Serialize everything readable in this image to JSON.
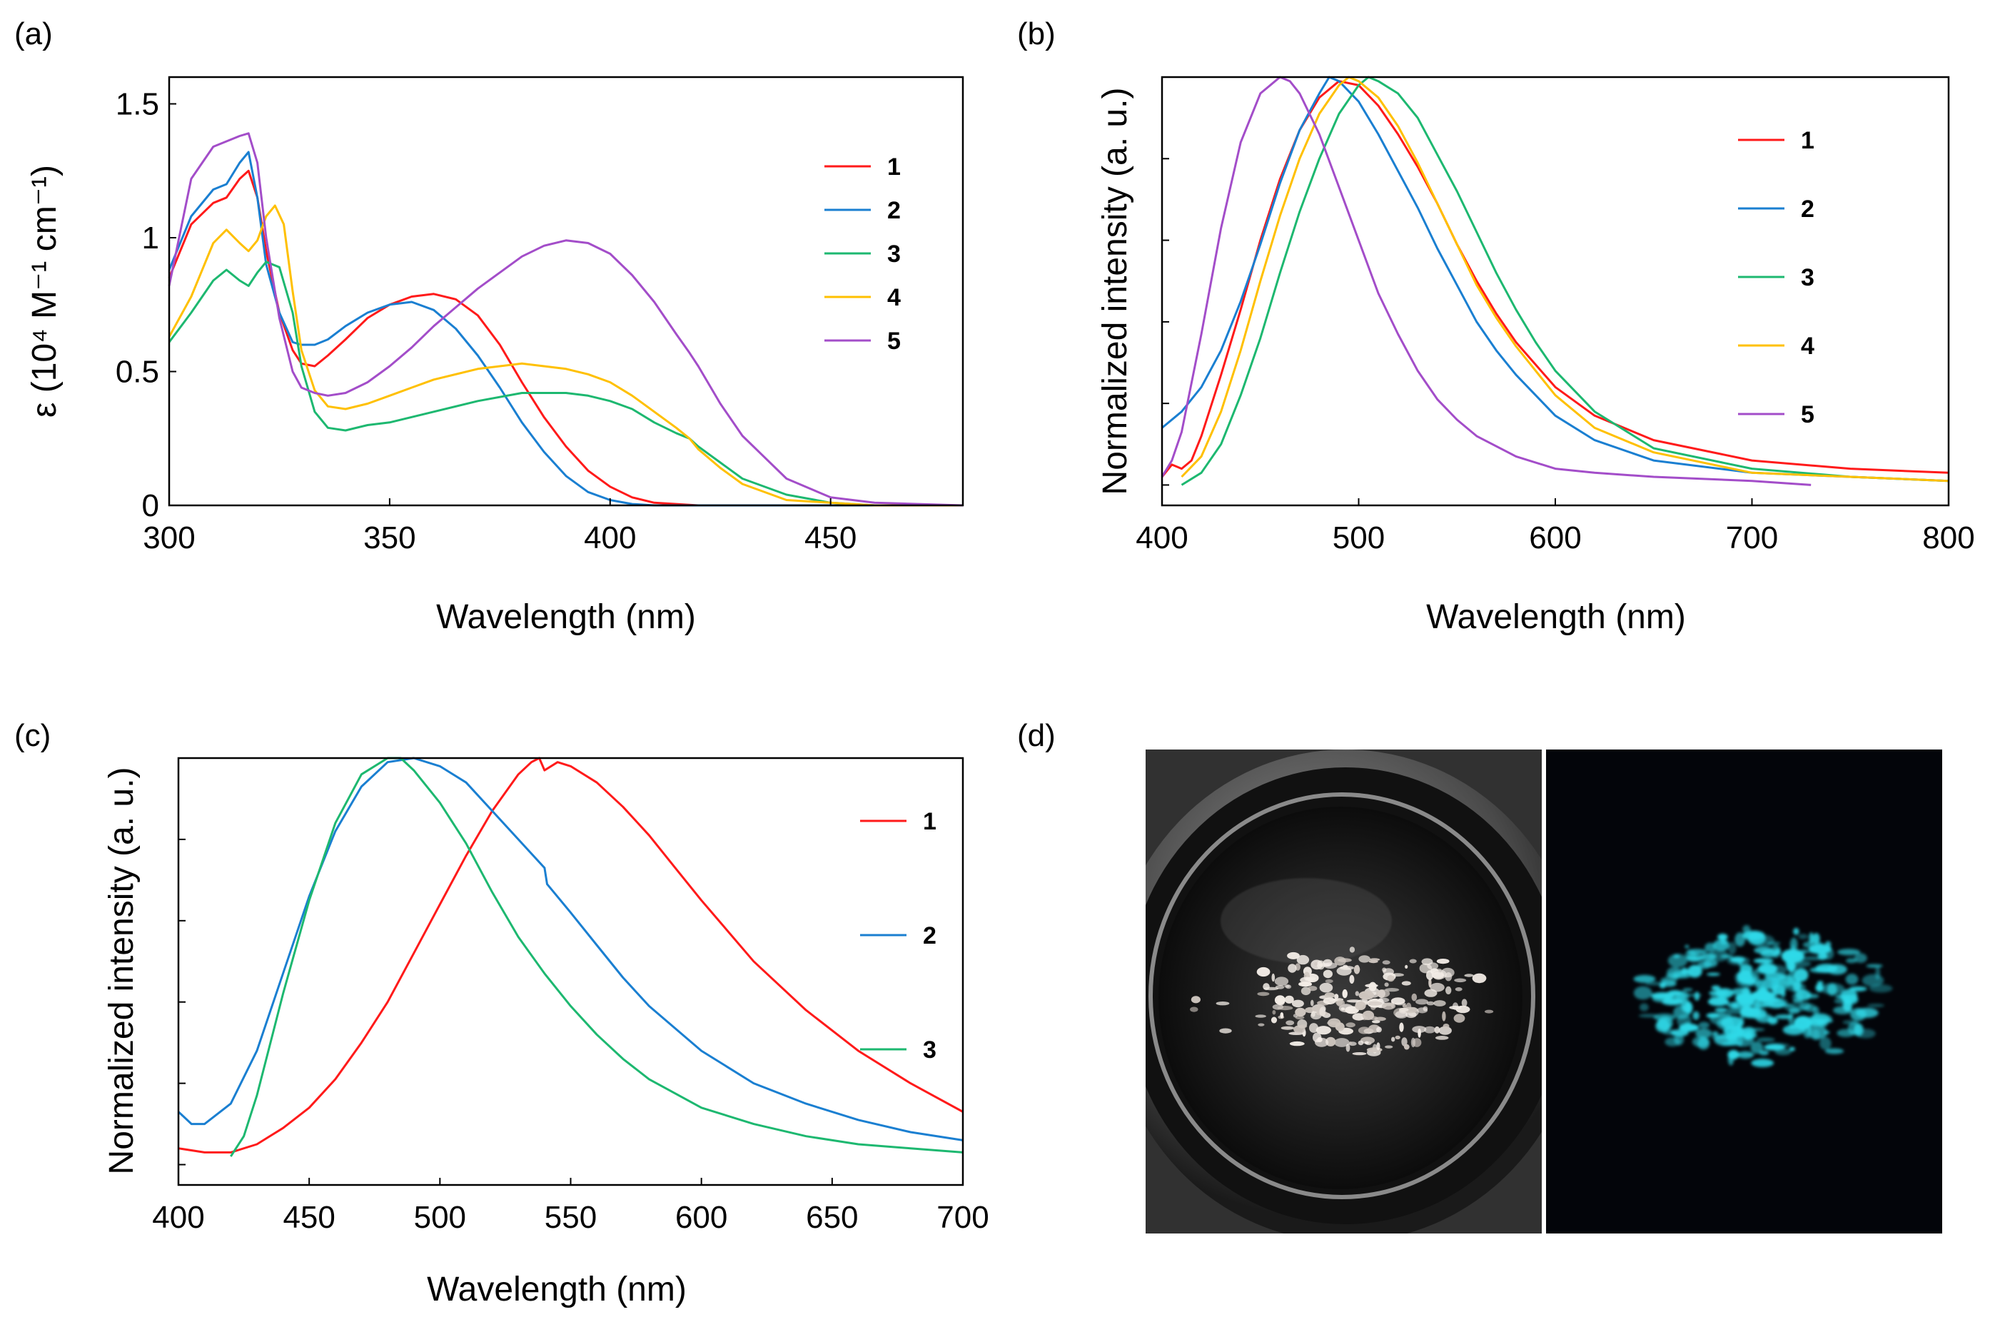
{
  "panels": {
    "a": {
      "label": "(a)"
    },
    "b": {
      "label": "(b)"
    },
    "c": {
      "label": "(c)"
    },
    "d": {
      "label": "(d)"
    }
  },
  "photo": {
    "left_caption": "",
    "right_caption": "",
    "glow_color": "#2fd9e8"
  },
  "chart_data": [
    {
      "id": "a",
      "type": "line",
      "title": "",
      "xlabel": "Wavelength (nm)",
      "ylabel": "ε (10⁴ M⁻¹ cm⁻¹)",
      "xlim": [
        300,
        480
      ],
      "ylim": [
        0,
        1.6
      ],
      "xticks": [
        300,
        350,
        400,
        450
      ],
      "yticks": [
        0,
        0.5,
        1,
        1.5
      ],
      "ytick_labels": [
        "0",
        "0.5",
        "1",
        "1.5"
      ],
      "legend_position": "right",
      "series": [
        {
          "name": "1",
          "color": "#ff1a1a",
          "x": [
            300,
            305,
            310,
            313,
            316,
            318,
            320,
            322,
            325,
            328,
            330,
            333,
            336,
            340,
            345,
            350,
            355,
            360,
            365,
            370,
            375,
            380,
            385,
            390,
            395,
            400,
            405,
            410,
            415,
            420,
            430,
            440,
            460,
            480
          ],
          "y": [
            0.85,
            1.05,
            1.13,
            1.15,
            1.22,
            1.25,
            1.15,
            0.95,
            0.72,
            0.58,
            0.53,
            0.52,
            0.56,
            0.62,
            0.7,
            0.75,
            0.78,
            0.79,
            0.77,
            0.71,
            0.6,
            0.46,
            0.33,
            0.22,
            0.13,
            0.07,
            0.03,
            0.01,
            0.005,
            0,
            0,
            0,
            0,
            0
          ]
        },
        {
          "name": "2",
          "color": "#1a7fd1",
          "x": [
            300,
            305,
            310,
            313,
            316,
            318,
            320,
            322,
            325,
            328,
            330,
            333,
            336,
            340,
            345,
            350,
            355,
            360,
            365,
            370,
            375,
            380,
            385,
            390,
            395,
            400,
            405,
            410,
            420,
            440,
            460,
            480
          ],
          "y": [
            0.88,
            1.08,
            1.18,
            1.2,
            1.28,
            1.32,
            1.15,
            0.9,
            0.72,
            0.61,
            0.6,
            0.6,
            0.62,
            0.67,
            0.72,
            0.75,
            0.76,
            0.73,
            0.66,
            0.56,
            0.44,
            0.31,
            0.2,
            0.11,
            0.05,
            0.02,
            0.005,
            0,
            0,
            0,
            0,
            0
          ]
        },
        {
          "name": "3",
          "color": "#1db870",
          "x": [
            300,
            305,
            310,
            313,
            316,
            318,
            320,
            322,
            325,
            328,
            330,
            333,
            336,
            340,
            345,
            350,
            355,
            360,
            370,
            380,
            385,
            390,
            395,
            400,
            405,
            410,
            415,
            418,
            420,
            425,
            430,
            440,
            450,
            460,
            480
          ],
          "y": [
            0.61,
            0.72,
            0.84,
            0.88,
            0.84,
            0.82,
            0.87,
            0.91,
            0.89,
            0.72,
            0.52,
            0.35,
            0.29,
            0.28,
            0.3,
            0.31,
            0.33,
            0.35,
            0.39,
            0.42,
            0.42,
            0.42,
            0.41,
            0.39,
            0.36,
            0.31,
            0.27,
            0.25,
            0.22,
            0.16,
            0.1,
            0.04,
            0.01,
            0,
            0
          ]
        },
        {
          "name": "4",
          "color": "#ffc000",
          "x": [
            300,
            305,
            310,
            313,
            316,
            318,
            320,
            322,
            324,
            326,
            328,
            330,
            333,
            336,
            340,
            345,
            350,
            355,
            360,
            370,
            380,
            385,
            390,
            395,
            400,
            405,
            410,
            415,
            418,
            420,
            425,
            430,
            440,
            450,
            460,
            480
          ],
          "y": [
            0.63,
            0.78,
            0.98,
            1.03,
            0.98,
            0.95,
            0.99,
            1.08,
            1.12,
            1.05,
            0.8,
            0.58,
            0.43,
            0.37,
            0.36,
            0.38,
            0.41,
            0.44,
            0.47,
            0.51,
            0.53,
            0.52,
            0.51,
            0.49,
            0.46,
            0.41,
            0.35,
            0.29,
            0.25,
            0.21,
            0.14,
            0.08,
            0.02,
            0.01,
            0,
            0
          ]
        },
        {
          "name": "5",
          "color": "#a34dc9",
          "x": [
            300,
            305,
            310,
            313,
            316,
            318,
            320,
            322,
            325,
            328,
            330,
            333,
            336,
            340,
            345,
            350,
            355,
            360,
            365,
            370,
            375,
            380,
            385,
            390,
            395,
            400,
            405,
            410,
            415,
            418,
            420,
            425,
            430,
            440,
            450,
            460,
            480
          ],
          "y": [
            0.82,
            1.22,
            1.34,
            1.36,
            1.38,
            1.39,
            1.28,
            1.0,
            0.7,
            0.5,
            0.44,
            0.42,
            0.41,
            0.42,
            0.46,
            0.52,
            0.59,
            0.67,
            0.74,
            0.81,
            0.87,
            0.93,
            0.97,
            0.99,
            0.98,
            0.94,
            0.86,
            0.76,
            0.64,
            0.57,
            0.52,
            0.38,
            0.26,
            0.1,
            0.03,
            0.01,
            0
          ]
        }
      ]
    },
    {
      "id": "b",
      "type": "line",
      "title": "",
      "xlabel": "Wavelength (nm)",
      "ylabel": "Normalized intensity (a. u.)",
      "xlim": [
        400,
        800
      ],
      "ylim": [
        -0.05,
        1.0
      ],
      "xticks": [
        400,
        500,
        600,
        700,
        800
      ],
      "yticks": [
        0,
        0.2,
        0.4,
        0.6,
        0.8,
        1.0
      ],
      "ytick_labels": [
        "",
        "",
        "",
        "",
        "",
        ""
      ],
      "legend_position": "right",
      "series": [
        {
          "name": "1",
          "color": "#ff1a1a",
          "x": [
            400,
            405,
            410,
            415,
            420,
            430,
            440,
            450,
            460,
            470,
            480,
            490,
            500,
            510,
            520,
            530,
            540,
            550,
            560,
            570,
            580,
            600,
            620,
            650,
            700,
            750,
            800
          ],
          "y": [
            0.02,
            0.05,
            0.04,
            0.06,
            0.12,
            0.27,
            0.43,
            0.6,
            0.75,
            0.87,
            0.95,
            0.99,
            0.98,
            0.93,
            0.86,
            0.78,
            0.69,
            0.59,
            0.5,
            0.42,
            0.35,
            0.24,
            0.17,
            0.11,
            0.06,
            0.04,
            0.03
          ]
        },
        {
          "name": "2",
          "color": "#1a7fd1",
          "x": [
            400,
            410,
            420,
            430,
            440,
            450,
            460,
            470,
            480,
            485,
            490,
            500,
            510,
            520,
            530,
            540,
            550,
            560,
            570,
            580,
            600,
            620,
            650,
            700,
            750,
            800
          ],
          "y": [
            0.14,
            0.18,
            0.24,
            0.33,
            0.45,
            0.59,
            0.74,
            0.87,
            0.96,
            1.0,
            0.99,
            0.94,
            0.86,
            0.77,
            0.68,
            0.58,
            0.49,
            0.4,
            0.33,
            0.27,
            0.17,
            0.11,
            0.06,
            0.03,
            0.02,
            0.01
          ]
        },
        {
          "name": "3",
          "color": "#1db870",
          "x": [
            410,
            420,
            430,
            440,
            450,
            460,
            470,
            480,
            490,
            500,
            505,
            510,
            520,
            530,
            540,
            550,
            560,
            570,
            580,
            590,
            600,
            620,
            650,
            700,
            750,
            800
          ],
          "y": [
            0.0,
            0.03,
            0.1,
            0.22,
            0.36,
            0.52,
            0.67,
            0.8,
            0.91,
            0.98,
            1.0,
            0.99,
            0.96,
            0.9,
            0.81,
            0.72,
            0.62,
            0.52,
            0.43,
            0.35,
            0.28,
            0.18,
            0.09,
            0.04,
            0.02,
            0.01
          ]
        },
        {
          "name": "4",
          "color": "#ffc000",
          "x": [
            410,
            420,
            430,
            440,
            450,
            460,
            470,
            480,
            490,
            495,
            500,
            510,
            520,
            530,
            540,
            550,
            560,
            570,
            580,
            600,
            620,
            650,
            700,
            750,
            800
          ],
          "y": [
            0.02,
            0.07,
            0.18,
            0.33,
            0.5,
            0.66,
            0.8,
            0.91,
            0.98,
            1.0,
            0.99,
            0.95,
            0.88,
            0.79,
            0.69,
            0.59,
            0.49,
            0.41,
            0.34,
            0.22,
            0.14,
            0.08,
            0.03,
            0.02,
            0.01
          ]
        },
        {
          "name": "5",
          "color": "#a34dc9",
          "x": [
            400,
            405,
            410,
            420,
            430,
            440,
            450,
            460,
            465,
            470,
            480,
            490,
            500,
            510,
            520,
            530,
            540,
            550,
            560,
            580,
            600,
            620,
            650,
            700,
            730
          ],
          "y": [
            0.02,
            0.06,
            0.13,
            0.37,
            0.63,
            0.84,
            0.96,
            1.0,
            0.99,
            0.96,
            0.86,
            0.73,
            0.6,
            0.47,
            0.37,
            0.28,
            0.21,
            0.16,
            0.12,
            0.07,
            0.04,
            0.03,
            0.02,
            0.01,
            0.0
          ]
        }
      ]
    },
    {
      "id": "c",
      "type": "line",
      "title": "",
      "xlabel": "Wavelength (nm)",
      "ylabel": "Normalized intensity (a. u.)",
      "xlim": [
        400,
        700
      ],
      "ylim": [
        -0.05,
        1.0
      ],
      "xticks": [
        400,
        450,
        500,
        550,
        600,
        650,
        700
      ],
      "yticks": [
        0,
        0.2,
        0.4,
        0.6,
        0.8,
        1.0
      ],
      "ytick_labels": [
        "",
        "",
        "",
        "",
        "",
        ""
      ],
      "legend_position": "right",
      "series": [
        {
          "name": "1",
          "color": "#ff1a1a",
          "x": [
            400,
            410,
            420,
            430,
            440,
            450,
            460,
            470,
            480,
            490,
            500,
            510,
            520,
            530,
            535,
            538,
            540,
            545,
            550,
            560,
            570,
            580,
            590,
            600,
            620,
            640,
            660,
            680,
            700
          ],
          "y": [
            0.04,
            0.03,
            0.03,
            0.05,
            0.09,
            0.14,
            0.21,
            0.3,
            0.4,
            0.52,
            0.64,
            0.76,
            0.87,
            0.96,
            0.99,
            1.0,
            0.97,
            0.99,
            0.98,
            0.94,
            0.88,
            0.81,
            0.73,
            0.65,
            0.5,
            0.38,
            0.28,
            0.2,
            0.13
          ]
        },
        {
          "name": "2",
          "color": "#1a7fd1",
          "x": [
            400,
            405,
            410,
            420,
            430,
            440,
            450,
            460,
            470,
            480,
            490,
            500,
            510,
            520,
            530,
            540,
            541,
            550,
            560,
            570,
            580,
            600,
            620,
            640,
            660,
            680,
            700
          ],
          "y": [
            0.13,
            0.1,
            0.1,
            0.15,
            0.28,
            0.47,
            0.66,
            0.82,
            0.93,
            0.99,
            1.0,
            0.98,
            0.94,
            0.87,
            0.8,
            0.73,
            0.69,
            0.62,
            0.54,
            0.46,
            0.39,
            0.28,
            0.2,
            0.15,
            0.11,
            0.08,
            0.06
          ]
        },
        {
          "name": "3",
          "color": "#1db870",
          "x": [
            420,
            425,
            430,
            440,
            450,
            460,
            470,
            480,
            485,
            490,
            500,
            510,
            520,
            530,
            540,
            550,
            560,
            570,
            580,
            600,
            620,
            640,
            660,
            680,
            700
          ],
          "y": [
            0.02,
            0.07,
            0.17,
            0.42,
            0.65,
            0.84,
            0.96,
            1.0,
            1.0,
            0.97,
            0.89,
            0.79,
            0.67,
            0.56,
            0.47,
            0.39,
            0.32,
            0.26,
            0.21,
            0.14,
            0.1,
            0.07,
            0.05,
            0.04,
            0.03
          ]
        }
      ]
    }
  ]
}
